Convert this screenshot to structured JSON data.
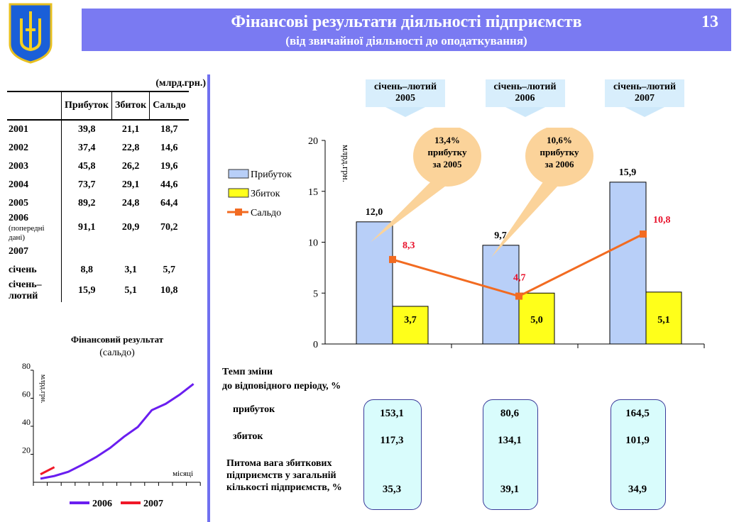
{
  "header": {
    "title": "Фінансові результати діяльності підприємств",
    "subtitle": "(від звичайної діяльності до оподаткування)",
    "page_number": "13"
  },
  "table": {
    "unit": "(млрд.грн.)",
    "columns": [
      "",
      "Прибуток",
      "Збиток",
      "Сальдо"
    ],
    "rows": [
      {
        "label": "2001",
        "values": [
          "39,8",
          "21,1",
          "18,7"
        ]
      },
      {
        "label": "2002",
        "values": [
          "37,4",
          "22,8",
          "14,6"
        ]
      },
      {
        "label": "2003",
        "values": [
          "45,8",
          "26,2",
          "19,6"
        ]
      },
      {
        "label": "2004",
        "values": [
          "73,7",
          "29,1",
          "44,6"
        ]
      },
      {
        "label": "2005",
        "values": [
          "89,2",
          "24,8",
          "64,4"
        ]
      },
      {
        "label": "2006",
        "note": "(попередні дані)",
        "values": [
          "91,1",
          "20,9",
          "70,2"
        ]
      },
      {
        "label": "2007",
        "values": [
          "",
          "",
          ""
        ]
      },
      {
        "label": "січень",
        "values": [
          "8,8",
          "3,1",
          "5,7"
        ]
      },
      {
        "label": "січень–лютий",
        "values": [
          "15,9",
          "5,1",
          "10,8"
        ]
      }
    ]
  },
  "chart_data": [
    {
      "type": "bar",
      "title": "",
      "ylabel": "млрд.грн.",
      "ylim": [
        0,
        20
      ],
      "yticks": [
        "0",
        "5",
        "10",
        "15",
        "20"
      ],
      "categories": [
        "січень–лютий 2005",
        "січень–лютий 2006",
        "січень–лютий 2007"
      ],
      "category_headers": [
        [
          "січень–лютий",
          "2005"
        ],
        [
          "січень–лютий",
          "2006"
        ],
        [
          "січень–лютий",
          "2007"
        ]
      ],
      "series": [
        {
          "name": "Прибуток",
          "type": "bar",
          "color": "#b8cff8",
          "values": [
            12.0,
            9.7,
            15.9
          ],
          "labels": [
            "12,0",
            "9,7",
            "15,9"
          ]
        },
        {
          "name": "Збиток",
          "type": "bar",
          "color": "#ffff1a",
          "values": [
            3.7,
            5.0,
            5.1
          ],
          "labels": [
            "3,7",
            "5,0",
            "5,1"
          ]
        },
        {
          "name": "Сальдо",
          "type": "line",
          "color": "#f26b21",
          "values": [
            8.3,
            4.7,
            10.8
          ],
          "labels": [
            "8,3",
            "4,7",
            "10,8"
          ]
        }
      ],
      "callouts": [
        [
          "13,4%",
          "прибутку",
          "за  2005"
        ],
        [
          "10,6%",
          "прибутку",
          "за  2006"
        ]
      ],
      "legend": "left"
    },
    {
      "type": "line",
      "title": "Фінансовий  результат",
      "subtitle": "(сальдо)",
      "ylabel": "млрд.грн.",
      "xlabel": "місяці",
      "ylim": [
        0,
        80
      ],
      "yticks": [
        "20",
        "40",
        "60",
        "80"
      ],
      "series": [
        {
          "name": "2006",
          "color": "#6a1ef0",
          "values": [
            2.6,
            4.5,
            7.5,
            12.5,
            18,
            24.5,
            32.5,
            39.5,
            51.5,
            56,
            62.5,
            70.2
          ]
        },
        {
          "name": "2007",
          "color": "#f01828",
          "values": [
            5.7,
            10.8
          ]
        }
      ],
      "legend": "bottom"
    }
  ],
  "rates": {
    "title": [
      "Темп зміни",
      "до відповідного періоду, %"
    ],
    "labels": [
      "прибуток",
      "збиток"
    ],
    "share_label": [
      "Питома вага збиткових",
      "підприємств у загальній",
      "кількості підприємств, %"
    ],
    "columns": [
      [
        "153,1",
        "117,3",
        "35,3"
      ],
      [
        "80,6",
        "134,1",
        "39,1"
      ],
      [
        "164,5",
        "101,9",
        "34,9"
      ]
    ]
  }
}
